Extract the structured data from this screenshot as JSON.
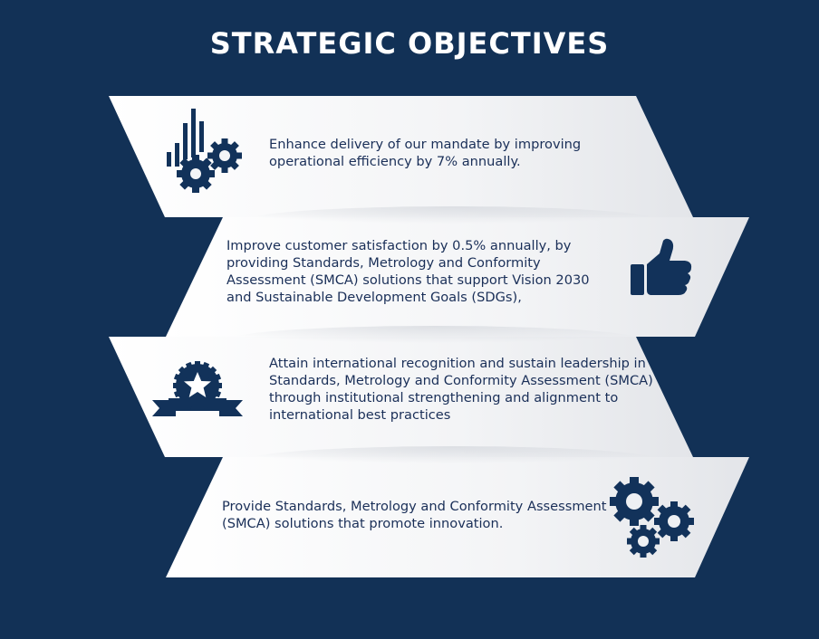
{
  "title": "STRATEGIC OBJECTIVES",
  "objectives": [
    {
      "text": "Enhance delivery of our mandate by improving operational efficiency by 7% annually.",
      "icon": "chart-gears-icon"
    },
    {
      "text": "Improve customer satisfaction by 0.5% annually, by providing Standards, Metrology and Conformity Assessment (SMCA) solutions that support Vision 2030 and Sustainable Development Goals (SDGs),",
      "icon": "thumbs-up-icon"
    },
    {
      "text": "Attain international recognition and sustain leadership in Standards, Metrology and Conformity Assessment (SMCA) through institutional strengthening and alignment to international best practices",
      "icon": "award-badge-icon"
    },
    {
      "text": "Provide Standards, Metrology and Conformity Assessment (SMCA) solutions that promote innovation.",
      "icon": "gears-icon"
    }
  ],
  "colors": {
    "background": "#123156",
    "ribbon": "#f2f3f5",
    "text": "#1a2f58",
    "icon": "#12325a"
  }
}
